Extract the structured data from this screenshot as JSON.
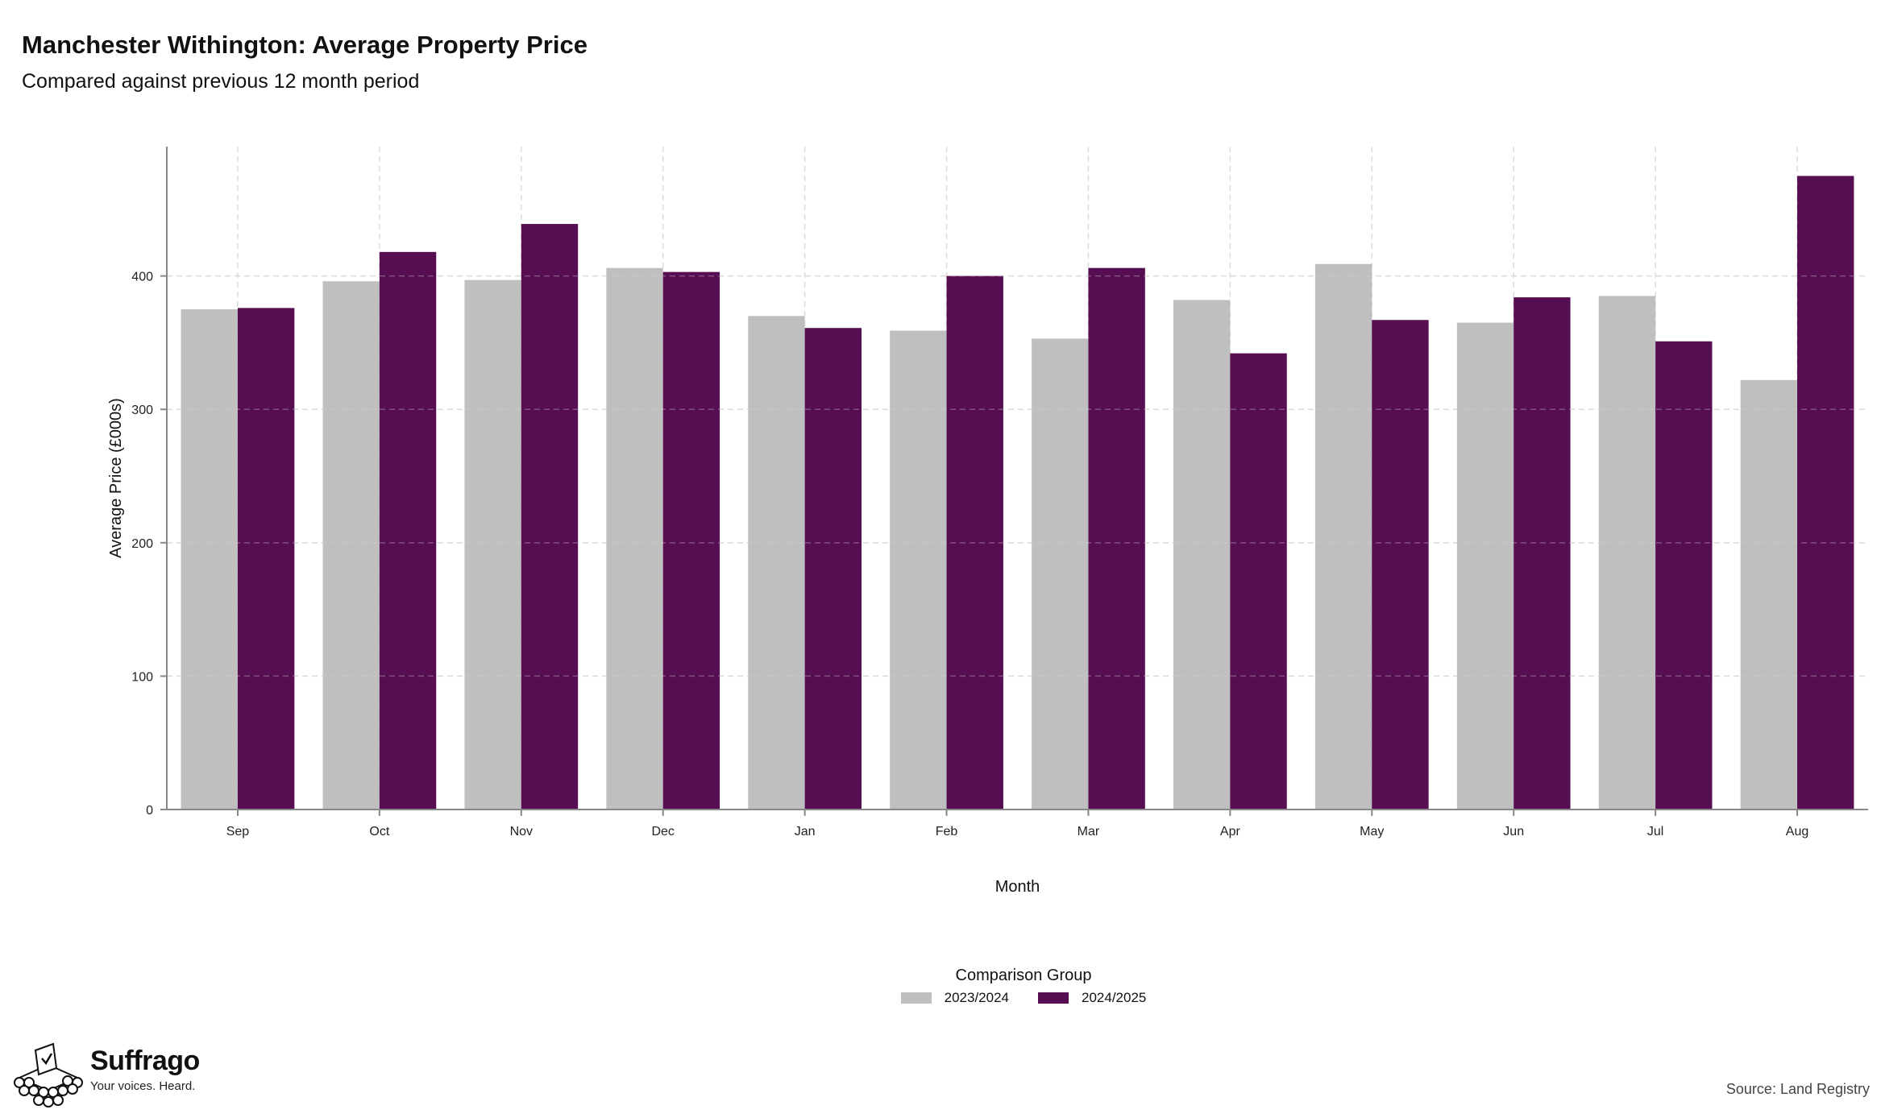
{
  "header": {
    "title": "Manchester Withington: Average Property Price",
    "subtitle": "Compared against previous 12 month period"
  },
  "colors": {
    "series_prev": "#bfbfbf",
    "series_curr": "#560d52",
    "grid": "#dddddd",
    "axis": "#888888"
  },
  "chart_data": {
    "type": "bar",
    "title": "Manchester Withington: Average Property Price",
    "subtitle": "Compared against previous 12 month period",
    "xlabel": "Month",
    "ylabel": "Average Price (£000s)",
    "ylim": [
      0,
      497
    ],
    "yticks": [
      0,
      100,
      200,
      300,
      400
    ],
    "grid": true,
    "legend_position": "bottom",
    "legend_title": "Comparison Group",
    "categories": [
      "Sep",
      "Oct",
      "Nov",
      "Dec",
      "Jan",
      "Feb",
      "Mar",
      "Apr",
      "May",
      "Jun",
      "Jul",
      "Aug"
    ],
    "series": [
      {
        "name": "2023/2024",
        "values": [
          375,
          396,
          397,
          406,
          370,
          359,
          353,
          382,
          409,
          365,
          385,
          322
        ]
      },
      {
        "name": "2024/2025",
        "values": [
          376,
          418,
          439,
          403,
          361,
          400,
          406,
          342,
          367,
          384,
          351,
          475
        ]
      }
    ]
  },
  "legend": {
    "title": "Comparison Group",
    "items": [
      "2023/2024",
      "2024/2025"
    ]
  },
  "branding": {
    "name": "Suffrago",
    "tagline": "Your voices. Heard.",
    "icon": "ballot-box-logo-icon"
  },
  "footer": {
    "source": "Source: Land Registry"
  }
}
